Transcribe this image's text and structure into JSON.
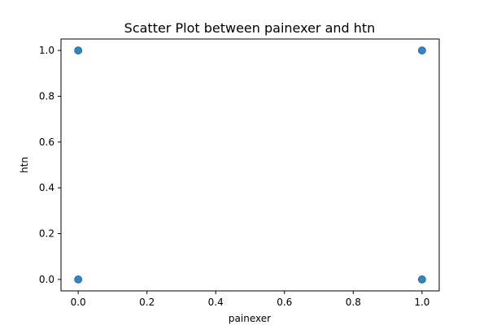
{
  "chart_data": {
    "type": "scatter",
    "title": "Scatter Plot between painexer and htn",
    "xlabel": "painexer",
    "ylabel": "htn",
    "xlim": [
      -0.05,
      1.05
    ],
    "ylim": [
      -0.05,
      1.05
    ],
    "xticks": [
      0.0,
      0.2,
      0.4,
      0.6,
      0.8,
      1.0
    ],
    "xtick_labels": [
      "0.0",
      "0.2",
      "0.4",
      "0.6",
      "0.8",
      "1.0"
    ],
    "yticks": [
      0.0,
      0.2,
      0.4,
      0.6,
      0.8,
      1.0
    ],
    "ytick_labels": [
      "0.0",
      "0.2",
      "0.4",
      "0.6",
      "0.8",
      "1.0"
    ],
    "grid": false,
    "series": [
      {
        "color": "#1f77b4",
        "points": [
          {
            "x": 0,
            "y": 1
          },
          {
            "x": 1,
            "y": 1
          },
          {
            "x": 0,
            "y": 0
          },
          {
            "x": 1,
            "y": 0
          }
        ]
      }
    ]
  }
}
